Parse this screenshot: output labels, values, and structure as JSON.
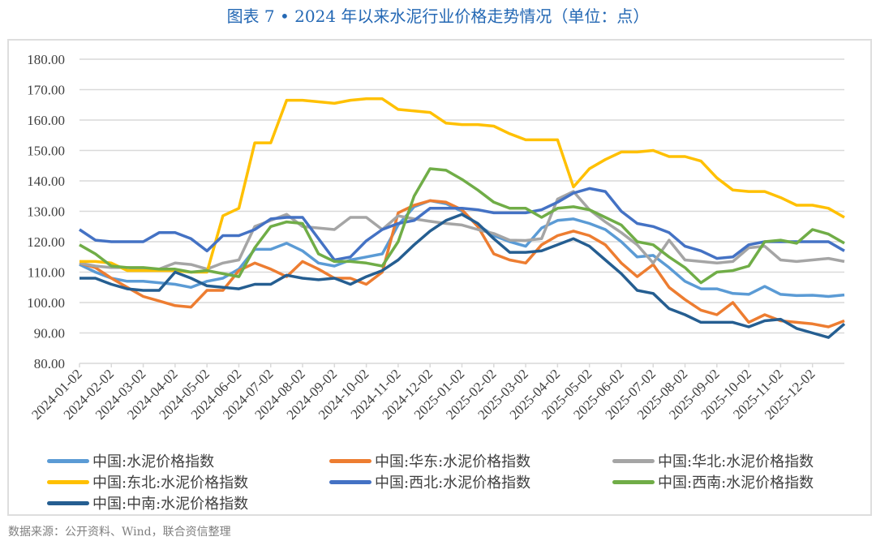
{
  "chart_data": {
    "type": "line",
    "title": "图表 7 • 2024 年以来水泥行业价格走势情况（单位：点）",
    "xlabel": "",
    "ylabel": "",
    "ylim": [
      80,
      180
    ],
    "yticks": [
      "80.00",
      "90.00",
      "100.00",
      "110.00",
      "120.00",
      "130.00",
      "140.00",
      "150.00",
      "160.00",
      "170.00",
      "180.00"
    ],
    "xtick_labels": [
      "2024-01-02",
      "2024-02-02",
      "2024-03-02",
      "2024-04-02",
      "2024-05-02",
      "2024-06-02",
      "2024-07-02",
      "2024-08-02",
      "2024-09-02",
      "2024-10-02",
      "2024-11-02",
      "2024-12-02",
      "2025-01-02",
      "2025-02-02",
      "2025-03-02",
      "2025-04-02",
      "2025-05-02",
      "2025-06-02",
      "2025-07-02",
      "2025-08-02",
      "2025-09-02",
      "2025-10-02",
      "2025-11-02",
      "2025-12-02"
    ],
    "x_unit": "months since 2024-01-02, half-month steps",
    "x": [
      0,
      0.5,
      1,
      1.5,
      2,
      2.5,
      3,
      3.5,
      4,
      4.5,
      5,
      5.5,
      6,
      6.5,
      7,
      7.5,
      8,
      8.5,
      9,
      9.5,
      10,
      10.5,
      11,
      11.5,
      12,
      12.5,
      13,
      13.5,
      14,
      14.5,
      15,
      15.5,
      16,
      16.5,
      17,
      17.5,
      18,
      18.5,
      19,
      19.5,
      20,
      20.5,
      21,
      21.5,
      22,
      22.5,
      23,
      23.5,
      24
    ],
    "grid": true,
    "legend_position": "bottom",
    "series": [
      {
        "name": "中国:水泥价格指数",
        "color": "#5b9bd5",
        "values": [
          112.5,
          110,
          108,
          107,
          107,
          106.5,
          106,
          105,
          107,
          108,
          111,
          117.5,
          117.5,
          119.5,
          117,
          113,
          112,
          114,
          115,
          116,
          125.5,
          131.5,
          133.5,
          132.5,
          130,
          125.5,
          122,
          120,
          118.5,
          124.5,
          127,
          127.5,
          126,
          124,
          120,
          115,
          115.5,
          111.5,
          107,
          104.5,
          104.5,
          103,
          102.7,
          105.3,
          102.7,
          102.3,
          102.4,
          102,
          102.5
        ]
      },
      {
        "name": "中国:华东:水泥价格指数",
        "color": "#ed7d31",
        "values": [
          113,
          111.5,
          108,
          105,
          102,
          100.5,
          99,
          98.5,
          104,
          104,
          110.5,
          113,
          111,
          108.5,
          113.5,
          111,
          108,
          108,
          106,
          110,
          129.5,
          132,
          133.5,
          133,
          130.5,
          125,
          116,
          114,
          113,
          119,
          122,
          123.5,
          122,
          119,
          113,
          108.5,
          112.5,
          105,
          101,
          97.5,
          96,
          100,
          93.5,
          96,
          94,
          93.5,
          93,
          92,
          94
        ]
      },
      {
        "name": "中国:华北:水泥价格指数",
        "color": "#a5a5a5",
        "values": [
          113,
          112,
          111.5,
          111.5,
          111,
          111,
          113,
          112.5,
          111,
          113,
          114,
          125,
          127,
          129,
          125,
          124.5,
          124,
          128,
          128,
          124,
          128.5,
          127.5,
          126.7,
          126,
          125.5,
          124,
          122.7,
          120.5,
          120.4,
          121,
          134,
          136.5,
          130.5,
          126.5,
          123,
          119,
          113,
          120.5,
          114,
          113.5,
          113,
          113.5,
          118,
          118.5,
          114,
          113.5,
          114,
          114.5,
          113.5
        ]
      },
      {
        "name": "中国:东北:水泥价格指数",
        "color": "#ffc000",
        "values": [
          113.5,
          113.5,
          113,
          110.5,
          110.5,
          110.5,
          110.5,
          110,
          110,
          128.5,
          131,
          152.5,
          152.5,
          166.5,
          166.5,
          166,
          165.5,
          166.5,
          167,
          167,
          163.5,
          163,
          162.5,
          159,
          158.5,
          158.5,
          158,
          155.5,
          153.5,
          153.5,
          153.5,
          138,
          144,
          147,
          149.5,
          149.5,
          150,
          148,
          148,
          146.5,
          141,
          137,
          136.5,
          136.5,
          134.5,
          132,
          132,
          131,
          128
        ]
      },
      {
        "name": "中国:西北:水泥价格指数",
        "color": "#4472c4",
        "values": [
          124,
          120.5,
          120,
          120,
          120,
          123,
          123,
          121,
          117,
          122,
          122,
          124,
          127.5,
          128,
          128,
          121,
          114,
          115,
          120.3,
          124,
          126,
          127,
          131,
          131,
          131,
          130.5,
          129.5,
          129.5,
          129.5,
          130.5,
          133,
          136,
          137.5,
          136.5,
          130,
          126,
          125,
          123,
          118.5,
          117,
          114.5,
          115,
          119,
          120,
          120,
          120,
          120,
          120,
          117
        ]
      },
      {
        "name": "中国:西南:水泥价格指数",
        "color": "#70ad47",
        "values": [
          119,
          116,
          112,
          111.5,
          111.5,
          111,
          111,
          110,
          110.5,
          109.5,
          108.5,
          118,
          125,
          126.5,
          126,
          116,
          113.5,
          113.5,
          113,
          112,
          120,
          135,
          144,
          143.5,
          140.5,
          137,
          133,
          131,
          131,
          128,
          131,
          131.5,
          130.5,
          128,
          125.5,
          120,
          119,
          115,
          111.5,
          106.5,
          110,
          110.5,
          112,
          120,
          120.5,
          119.5,
          124,
          122.5,
          119.5
        ]
      },
      {
        "name": "中国:中南:水泥价格指数",
        "color": "#255e91",
        "values": [
          108,
          108,
          106,
          104.5,
          104,
          104,
          110,
          108,
          105.5,
          105,
          104.5,
          106,
          106,
          109,
          108,
          107.5,
          108,
          106,
          108.5,
          110.5,
          114,
          119,
          123.5,
          127,
          129,
          126,
          121,
          116.5,
          116.5,
          117,
          119,
          121,
          118.5,
          114,
          109.5,
          104,
          103,
          98,
          96,
          93.5,
          93.5,
          93.5,
          92,
          94,
          94.5,
          91.5,
          90,
          88.5,
          93
        ]
      }
    ]
  },
  "source": "数据来源：公开资料、Wind，联合资信整理"
}
